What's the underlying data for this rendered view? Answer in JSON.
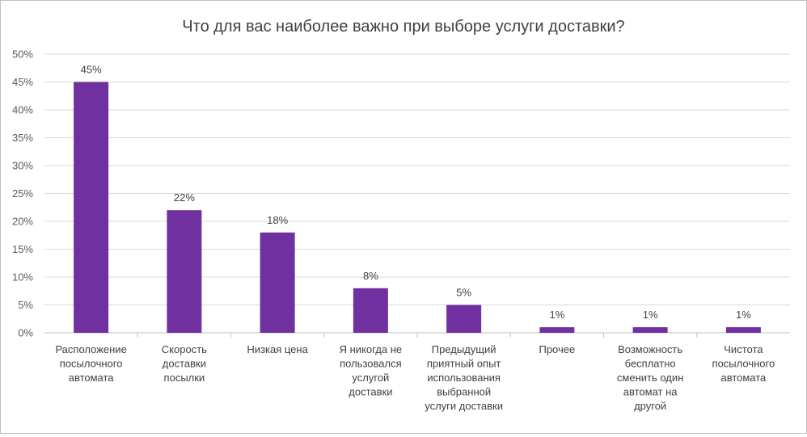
{
  "chart_data": {
    "type": "bar",
    "title": "Что для вас наиболее важно при выборе услуги доставки?",
    "xlabel": "",
    "ylabel": "",
    "ylim": [
      0,
      50
    ],
    "y_ticks": [
      "0%",
      "5%",
      "10%",
      "15%",
      "20%",
      "25%",
      "30%",
      "35%",
      "40%",
      "45%",
      "50%"
    ],
    "grid": true,
    "legend": "none",
    "bar_color": "#7030a0",
    "categories": [
      [
        "Расположение",
        "посылочного",
        "автомата"
      ],
      [
        "Скорость",
        "доставки",
        "посылки"
      ],
      [
        "Низкая цена"
      ],
      [
        "Я никогда не",
        "пользовался",
        "услугой",
        "доставки"
      ],
      [
        "Предыдущий",
        "приятный опыт",
        "использования",
        "выбранной",
        "услуги доставки"
      ],
      [
        "Прочее"
      ],
      [
        "Возможность",
        "бесплатно",
        "сменить один",
        "автомат на",
        "другой"
      ],
      [
        "Чистота",
        "посылочного",
        "автомата"
      ]
    ],
    "values": [
      45,
      22,
      18,
      8,
      5,
      1,
      1,
      1
    ],
    "data_labels": [
      "45%",
      "22%",
      "18%",
      "8%",
      "5%",
      "1%",
      "1%",
      "1%"
    ]
  }
}
